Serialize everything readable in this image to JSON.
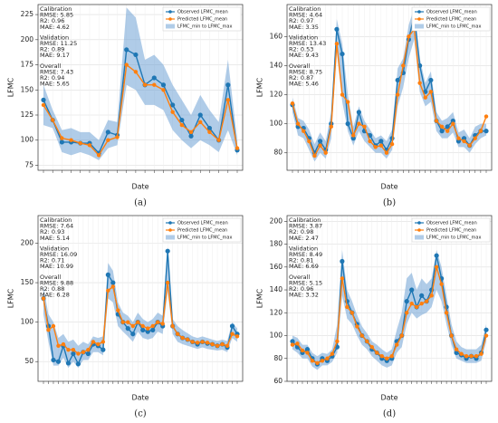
{
  "chart_data": [
    {
      "type": "line",
      "panel_label": "(a)",
      "x_label": "Date",
      "y_label": "LFMC",
      "ylim": [
        70,
        235
      ],
      "yticks": [
        75,
        100,
        125,
        150,
        175,
        200,
        225
      ],
      "grid": true,
      "legend": "upper right",
      "annotations": [
        [
          "Calibration",
          "RMSE: 5.85",
          "R2: 0.96",
          "MAE: 4.62"
        ],
        [
          "Validation",
          "RMSE: 11.25",
          "R2: 0.89",
          "MAE: 9.17"
        ],
        [
          "Overall",
          "RMSE: 7.43",
          "R2: 0.94",
          "MAE: 5.65"
        ]
      ],
      "series": [
        {
          "name": "Observed LFMC_mean",
          "color": "#1f77b4",
          "values": [
            140,
            120,
            98,
            98,
            97,
            97,
            87,
            108,
            105,
            190,
            185,
            155,
            162,
            155,
            135,
            120,
            104,
            125,
            112,
            100,
            155,
            90
          ]
        },
        {
          "name": "Predicted LFMC_mean",
          "color": "#ff7f0e",
          "values": [
            135,
            120,
            102,
            100,
            97,
            95,
            85,
            100,
            103,
            175,
            168,
            155,
            155,
            150,
            128,
            115,
            108,
            118,
            108,
            100,
            140,
            92
          ]
        },
        {
          "name": "LFMC_min to LFMC_max",
          "color": "#6fa3d6",
          "min": [
            115,
            112,
            88,
            85,
            88,
            85,
            80,
            92,
            95,
            155,
            150,
            135,
            135,
            130,
            110,
            100,
            92,
            100,
            95,
            88,
            110,
            85
          ],
          "max": [
            155,
            130,
            110,
            112,
            108,
            108,
            100,
            120,
            118,
            232,
            222,
            180,
            185,
            175,
            155,
            140,
            125,
            145,
            130,
            118,
            180,
            100
          ]
        }
      ]
    },
    {
      "type": "line",
      "panel_label": "(b)",
      "x_label": "Date",
      "y_label": "LFMC",
      "ylim": [
        68,
        182
      ],
      "yticks": [
        80,
        100,
        120,
        140,
        160
      ],
      "grid": true,
      "legend": "upper right",
      "annotations": [
        [
          "Calibration",
          "RMSE: 4.64",
          "R2: 0.97",
          "MAE: 3.35"
        ],
        [
          "Validation",
          "RMSE: 13.43",
          "R2: 0.53",
          "MAE: 9.43"
        ],
        [
          "Overall",
          "RMSE: 8.75",
          "R2: 0.87",
          "MAE: 5.46"
        ]
      ],
      "series": [
        {
          "name": "Observed LFMC_mean",
          "color": "#1f77b4",
          "values": [
            113,
            98,
            97,
            90,
            80,
            88,
            82,
            100,
            165,
            148,
            100,
            90,
            108,
            95,
            92,
            85,
            88,
            82,
            90,
            130,
            135,
            158,
            175,
            140,
            122,
            130,
            102,
            95,
            98,
            102,
            88,
            90,
            85,
            92,
            95,
            95
          ]
        },
        {
          "name": "Predicted LFMC_mean",
          "color": "#ff7f0e",
          "values": [
            114,
            100,
            95,
            88,
            78,
            85,
            80,
            98,
            155,
            120,
            115,
            92,
            100,
            98,
            88,
            84,
            85,
            80,
            86,
            120,
            140,
            160,
            165,
            128,
            118,
            122,
            102,
            98,
            95,
            100,
            90,
            88,
            85,
            90,
            95,
            105
          ]
        },
        {
          "name": "LFMC_min to LFMC_max",
          "color": "#6fa3d6",
          "min": [
            108,
            92,
            90,
            82,
            74,
            80,
            76,
            90,
            150,
            115,
            95,
            85,
            95,
            88,
            84,
            80,
            80,
            76,
            82,
            112,
            125,
            145,
            158,
            122,
            112,
            115,
            95,
            90,
            90,
            94,
            84,
            84,
            80,
            86,
            90,
            92
          ],
          "max": [
            118,
            104,
            102,
            96,
            86,
            94,
            88,
            108,
            172,
            155,
            120,
            98,
            112,
            102,
            96,
            90,
            92,
            88,
            96,
            138,
            145,
            168,
            180,
            145,
            128,
            136,
            108,
            102,
            104,
            108,
            94,
            96,
            90,
            98,
            100,
            100
          ]
        }
      ]
    },
    {
      "type": "line",
      "panel_label": "(c)",
      "x_label": "Date",
      "y_label": "LFMC",
      "ylim": [
        25,
        235
      ],
      "yticks": [
        50,
        100,
        150,
        200
      ],
      "grid": true,
      "legend": "upper right",
      "annotations": [
        [
          "Calibration",
          "RMSE: 7.64",
          "R2: 0.93",
          "MAE: 5.14"
        ],
        [
          "Validation",
          "RMSE: 16.09",
          "R2: 0.71",
          "MAE: 10.99"
        ],
        [
          "Overall",
          "RMSE: 9.88",
          "R2: 0.88",
          "MAE: 6.28"
        ]
      ],
      "series": [
        {
          "name": "Observed LFMC_mean",
          "color": "#1f77b4",
          "values": [
            130,
            95,
            52,
            50,
            70,
            48,
            60,
            47,
            62,
            60,
            72,
            70,
            65,
            160,
            150,
            110,
            100,
            92,
            85,
            100,
            90,
            88,
            90,
            100,
            95,
            190,
            95,
            85,
            80,
            78,
            75,
            72,
            75,
            73,
            72,
            70,
            72,
            68,
            95,
            85
          ]
        },
        {
          "name": "Predicted LFMC_mean",
          "color": "#ff7f0e",
          "values": [
            130,
            90,
            95,
            70,
            72,
            65,
            65,
            60,
            62,
            65,
            75,
            72,
            75,
            140,
            145,
            115,
            100,
            100,
            95,
            100,
            95,
            92,
            95,
            100,
            98,
            150,
            95,
            85,
            80,
            78,
            75,
            74,
            75,
            74,
            72,
            70,
            72,
            70,
            85,
            82
          ]
        },
        {
          "name": "LFMC_min to LFMC_max",
          "color": "#6fa3d6",
          "min": [
            110,
            75,
            45,
            45,
            55,
            42,
            50,
            42,
            52,
            52,
            62,
            62,
            58,
            130,
            125,
            95,
            88,
            82,
            75,
            88,
            80,
            78,
            80,
            88,
            85,
            140,
            85,
            75,
            72,
            70,
            68,
            66,
            68,
            66,
            65,
            64,
            65,
            62,
            80,
            75
          ],
          "max": [
            145,
            110,
            100,
            80,
            85,
            75,
            78,
            70,
            75,
            72,
            82,
            80,
            82,
            175,
            165,
            125,
            112,
            108,
            100,
            112,
            104,
            100,
            104,
            112,
            108,
            195,
            104,
            95,
            90,
            86,
            82,
            80,
            82,
            80,
            78,
            76,
            78,
            76,
            100,
            92
          ]
        }
      ]
    },
    {
      "type": "line",
      "panel_label": "(d)",
      "x_label": "Date",
      "y_label": "LFMC",
      "ylim": [
        60,
        205
      ],
      "yticks": [
        60,
        80,
        100,
        120,
        140,
        160,
        180,
        200
      ],
      "grid": true,
      "legend": "upper right",
      "annotations": [
        [
          "Calibration",
          "RMSE: 3.87",
          "R2: 0.98",
          "MAE: 2.47"
        ],
        [
          "Validation",
          "RMSE: 8.49",
          "R2: 0.81",
          "MAE: 6.69"
        ],
        [
          "Overall",
          "RMSE: 5.15",
          "R2: 0.96",
          "MAE: 3.32"
        ]
      ],
      "series": [
        {
          "name": "Observed LFMC_mean",
          "color": "#1f77b4",
          "values": [
            95,
            90,
            85,
            88,
            80,
            75,
            80,
            78,
            82,
            90,
            165,
            130,
            120,
            110,
            100,
            95,
            88,
            85,
            80,
            78,
            80,
            95,
            100,
            130,
            140,
            125,
            135,
            130,
            140,
            170,
            150,
            125,
            100,
            85,
            83,
            80,
            82,
            80,
            85,
            105
          ]
        },
        {
          "name": "Predicted LFMC_mean",
          "color": "#ff7f0e",
          "values": [
            92,
            93,
            87,
            85,
            78,
            76,
            78,
            80,
            84,
            95,
            150,
            125,
            120,
            108,
            100,
            95,
            90,
            85,
            82,
            80,
            82,
            92,
            100,
            120,
            128,
            125,
            128,
            130,
            135,
            160,
            145,
            120,
            100,
            88,
            84,
            82,
            82,
            82,
            84,
            100
          ]
        },
        {
          "name": "LFMC_min to LFMC_max",
          "color": "#6fa3d6",
          "min": [
            88,
            85,
            80,
            80,
            73,
            70,
            74,
            74,
            77,
            85,
            135,
            115,
            110,
            100,
            92,
            88,
            82,
            78,
            74,
            72,
            74,
            85,
            90,
            110,
            120,
            115,
            118,
            120,
            125,
            140,
            130,
            110,
            92,
            80,
            78,
            76,
            76,
            76,
            78,
            95
          ],
          "max": [
            100,
            98,
            92,
            92,
            85,
            82,
            85,
            84,
            88,
            110,
            175,
            140,
            130,
            118,
            108,
            102,
            95,
            92,
            88,
            85,
            88,
            105,
            120,
            150,
            155,
            140,
            150,
            145,
            150,
            175,
            160,
            135,
            110,
            95,
            90,
            88,
            88,
            88,
            92,
            110
          ]
        }
      ]
    }
  ]
}
